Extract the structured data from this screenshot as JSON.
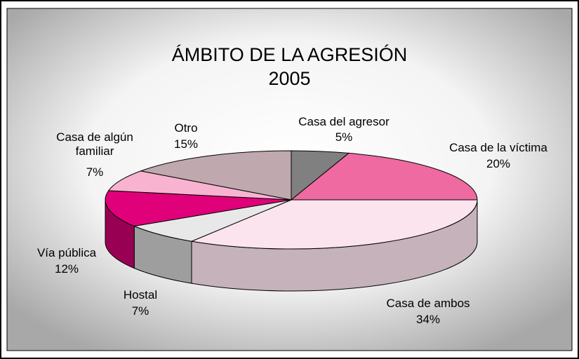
{
  "chart_data": {
    "type": "pie3d",
    "title": "ÁMBITO DE LA AGRESIÓN",
    "subtitle": "2005",
    "categories": [
      "Casa del agresor",
      "Casa de la víctima",
      "Casa de ambos",
      "Hostal",
      "Vía pública",
      "Casa de algún familiar",
      "Otro"
    ],
    "values": [
      5,
      20,
      34,
      7,
      12,
      7,
      15
    ],
    "value_labels": [
      "5%",
      "20%",
      "34%",
      "7%",
      "12%",
      "7%",
      "15%"
    ],
    "colors": [
      "#808080",
      "#ee6aa0",
      "#fce4ee",
      "#e8e8e8",
      "#e0007a",
      "#f7b3cf",
      "#bfa8ae"
    ]
  }
}
